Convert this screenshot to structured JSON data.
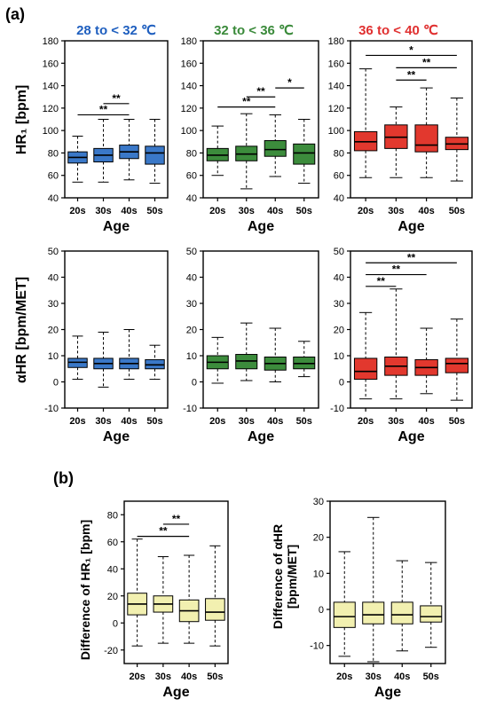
{
  "figure": {
    "panel_a_label": "(a)",
    "panel_b_label": "(b)",
    "col_titles": [
      "28 to < 32 ℃",
      "32 to < 36 ℃",
      "36 to < 40 ℃"
    ],
    "col_title_colors": [
      "#1f5fbf",
      "#3a8a3a",
      "#e03030"
    ],
    "row_a1_ylabel": "HR₁ [bpm]",
    "row_a2_ylabel": "αHR [bpm/MET]",
    "b1_ylabel": "Difference of HR₁ [bpm]",
    "b2_ylabel_line1": "Difference of αHR",
    "b2_ylabel_line2": "[bpm/MET]",
    "xlabel": "Age",
    "fill_colors": {
      "blue": "#3a78c8",
      "green": "#3c8c3c",
      "red": "#e2382e",
      "yellow": "#f2f0b0"
    }
  },
  "chart_data": [
    {
      "type": "box",
      "id": "a-hr-28-32",
      "title": "28 to < 32 ℃",
      "xlabel": "Age",
      "ylabel": "HR₁ [bpm]",
      "categories": [
        "20s",
        "30s",
        "40s",
        "50s"
      ],
      "ylim": [
        40,
        180
      ],
      "yticks": [
        40,
        60,
        80,
        100,
        120,
        140,
        160,
        180
      ],
      "fill": "blue",
      "boxes": [
        {
          "min": 54,
          "q1": 71,
          "median": 76,
          "q3": 81,
          "max": 95
        },
        {
          "min": 54,
          "q1": 72,
          "median": 78,
          "q3": 84,
          "max": 110
        },
        {
          "min": 56,
          "q1": 75,
          "median": 81,
          "q3": 87,
          "max": 110
        },
        {
          "min": 53,
          "q1": 70,
          "median": 80,
          "q3": 86,
          "max": 110
        }
      ],
      "significance": [
        {
          "from": 1,
          "to": 2,
          "label": "**",
          "y": 124
        },
        {
          "from": 0,
          "to": 2,
          "label": "**",
          "y": 114
        }
      ]
    },
    {
      "type": "box",
      "id": "a-hr-32-36",
      "title": "32 to < 36 ℃",
      "xlabel": "Age",
      "ylabel": "",
      "categories": [
        "20s",
        "30s",
        "40s",
        "50s"
      ],
      "ylim": [
        40,
        180
      ],
      "yticks": [
        40,
        60,
        80,
        100,
        120,
        140,
        160,
        180
      ],
      "fill": "green",
      "boxes": [
        {
          "min": 60,
          "q1": 73,
          "median": 78,
          "q3": 84,
          "max": 104
        },
        {
          "min": 48,
          "q1": 73,
          "median": 79,
          "q3": 86,
          "max": 115
        },
        {
          "min": 59,
          "q1": 77,
          "median": 83,
          "q3": 91,
          "max": 114
        },
        {
          "min": 53,
          "q1": 70,
          "median": 80,
          "q3": 88,
          "max": 110
        }
      ],
      "significance": [
        {
          "from": 2,
          "to": 3,
          "label": "*",
          "y": 138
        },
        {
          "from": 1,
          "to": 2,
          "label": "**",
          "y": 130
        },
        {
          "from": 0,
          "to": 2,
          "label": "**",
          "y": 121
        }
      ]
    },
    {
      "type": "box",
      "id": "a-hr-36-40",
      "title": "36 to < 40 ℃",
      "xlabel": "Age",
      "ylabel": "",
      "categories": [
        "20s",
        "30s",
        "40s",
        "50s"
      ],
      "ylim": [
        40,
        180
      ],
      "yticks": [
        40,
        60,
        80,
        100,
        120,
        140,
        160,
        180
      ],
      "fill": "red",
      "boxes": [
        {
          "min": 58,
          "q1": 82,
          "median": 90,
          "q3": 99,
          "max": 155
        },
        {
          "min": 58,
          "q1": 84,
          "median": 94,
          "q3": 105,
          "max": 121
        },
        {
          "min": 58,
          "q1": 81,
          "median": 87,
          "q3": 105,
          "max": 138
        },
        {
          "min": 55,
          "q1": 83,
          "median": 88,
          "q3": 94,
          "max": 129
        }
      ],
      "significance": [
        {
          "from": 0,
          "to": 3,
          "label": "*",
          "y": 167
        },
        {
          "from": 1,
          "to": 3,
          "label": "**",
          "y": 156
        },
        {
          "from": 1,
          "to": 2,
          "label": "**",
          "y": 145
        }
      ]
    },
    {
      "type": "box",
      "id": "a-ahr-28-32",
      "title": "",
      "xlabel": "Age",
      "ylabel": "αHR [bpm/MET]",
      "categories": [
        "20s",
        "30s",
        "40s",
        "50s"
      ],
      "ylim": [
        -10,
        50
      ],
      "yticks": [
        -10,
        0,
        10,
        20,
        30,
        40,
        50
      ],
      "fill": "blue",
      "boxes": [
        {
          "min": 1,
          "q1": 5.5,
          "median": 7.5,
          "q3": 9,
          "max": 17.5
        },
        {
          "min": -2,
          "q1": 5,
          "median": 7,
          "q3": 9,
          "max": 19
        },
        {
          "min": 1,
          "q1": 5,
          "median": 7,
          "q3": 9,
          "max": 20
        },
        {
          "min": 1,
          "q1": 5,
          "median": 6.5,
          "q3": 8.5,
          "max": 14
        }
      ],
      "significance": []
    },
    {
      "type": "box",
      "id": "a-ahr-32-36",
      "title": "",
      "xlabel": "Age",
      "ylabel": "",
      "categories": [
        "20s",
        "30s",
        "40s",
        "50s"
      ],
      "ylim": [
        -10,
        50
      ],
      "yticks": [
        -10,
        0,
        10,
        20,
        30,
        40,
        50
      ],
      "fill": "green",
      "boxes": [
        {
          "min": -0.5,
          "q1": 5,
          "median": 7.5,
          "q3": 10,
          "max": 17
        },
        {
          "min": 0.5,
          "q1": 5,
          "median": 8,
          "q3": 10.5,
          "max": 22.5
        },
        {
          "min": 0,
          "q1": 4.5,
          "median": 7,
          "q3": 9.5,
          "max": 20.5
        },
        {
          "min": 2,
          "q1": 5,
          "median": 7,
          "q3": 9.5,
          "max": 15.5
        }
      ],
      "significance": []
    },
    {
      "type": "box",
      "id": "a-ahr-36-40",
      "title": "",
      "xlabel": "Age",
      "ylabel": "",
      "categories": [
        "20s",
        "30s",
        "40s",
        "50s"
      ],
      "ylim": [
        -10,
        50
      ],
      "yticks": [
        -10,
        0,
        10,
        20,
        30,
        40,
        50
      ],
      "fill": "red",
      "boxes": [
        {
          "min": -6.5,
          "q1": 1,
          "median": 4,
          "q3": 9,
          "max": 26.5
        },
        {
          "min": -6.5,
          "q1": 2.5,
          "median": 6,
          "q3": 9.5,
          "max": 35.5
        },
        {
          "min": -4.5,
          "q1": 2.5,
          "median": 5.5,
          "q3": 8.5,
          "max": 20.5
        },
        {
          "min": -7,
          "q1": 3.5,
          "median": 7,
          "q3": 9,
          "max": 24
        }
      ],
      "significance": [
        {
          "from": 0,
          "to": 3,
          "label": "**",
          "y": 45.5
        },
        {
          "from": 0,
          "to": 2,
          "label": "**",
          "y": 41
        },
        {
          "from": 0,
          "to": 1,
          "label": "**",
          "y": 36.5
        }
      ]
    },
    {
      "type": "box",
      "id": "b-diff-hr",
      "title": "",
      "xlabel": "Age",
      "ylabel": "Difference of HR₁ [bpm]",
      "categories": [
        "20s",
        "30s",
        "40s",
        "50s"
      ],
      "ylim": [
        -30,
        90
      ],
      "yticks": [
        -20,
        0,
        20,
        40,
        60,
        80
      ],
      "fill": "yellow",
      "boxes": [
        {
          "min": -17,
          "q1": 6,
          "median": 14,
          "q3": 22,
          "max": 62
        },
        {
          "min": -15,
          "q1": 8,
          "median": 14,
          "q3": 20,
          "max": 49
        },
        {
          "min": -15,
          "q1": 1,
          "median": 9,
          "q3": 17,
          "max": 50
        },
        {
          "min": -17,
          "q1": 2,
          "median": 8,
          "q3": 18,
          "max": 57
        }
      ],
      "significance": [
        {
          "from": 1,
          "to": 2,
          "label": "**",
          "y": 73
        },
        {
          "from": 0,
          "to": 2,
          "label": "**",
          "y": 64
        }
      ]
    },
    {
      "type": "box",
      "id": "b-diff-ahr",
      "title": "",
      "xlabel": "Age",
      "ylabel": "Difference of αHR [bpm/MET]",
      "categories": [
        "20s",
        "30s",
        "40s",
        "50s"
      ],
      "ylim": [
        -15,
        30
      ],
      "yticks": [
        -10,
        0,
        10,
        20,
        30
      ],
      "fill": "yellow",
      "boxes": [
        {
          "min": -13,
          "q1": -5,
          "median": -2,
          "q3": 2,
          "max": 16
        },
        {
          "min": -14.5,
          "q1": -4,
          "median": -1.5,
          "q3": 2,
          "max": 25.5
        },
        {
          "min": -11.5,
          "q1": -4,
          "median": -1.5,
          "q3": 2,
          "max": 13.5
        },
        {
          "min": -10.5,
          "q1": -3.5,
          "median": -2,
          "q3": 1,
          "max": 13
        }
      ],
      "significance": []
    }
  ]
}
